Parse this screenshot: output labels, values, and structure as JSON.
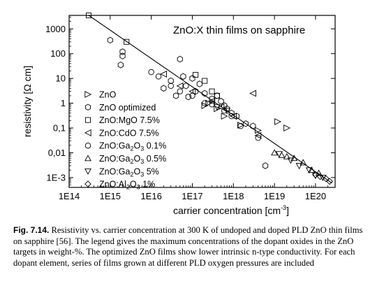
{
  "chart_data": {
    "type": "scatter",
    "title": "ZnO:X thin films on sapphire",
    "xlabel": "carrier concentration [cm",
    "xlabel_sup": "-3",
    "xlabel_end": "]",
    "ylabel": "resistivity [Ω cm]",
    "x_scale": "log",
    "y_scale": "log",
    "xlim": [
      100000000000000.0,
      3e+20
    ],
    "ylim": [
      0.0004,
      3500
    ],
    "grid": false,
    "legend_position": "left",
    "x_ticks": [
      {
        "value": 100000000000000.0,
        "label": "1E14"
      },
      {
        "value": 1000000000000000.0,
        "label": "1E15"
      },
      {
        "value": 1e+16,
        "label": "1E16"
      },
      {
        "value": 1e+17,
        "label": "1E17"
      },
      {
        "value": 1e+18,
        "label": "1E18"
      },
      {
        "value": 1e+19,
        "label": "1E19"
      },
      {
        "value": 1e+20,
        "label": "1E20"
      }
    ],
    "y_ticks": [
      {
        "value": 1000,
        "label": "1000"
      },
      {
        "value": 100,
        "label": "100"
      },
      {
        "value": 10,
        "label": "10"
      },
      {
        "value": 1,
        "label": "1"
      },
      {
        "value": 0.1,
        "label": "0,1"
      },
      {
        "value": 0.01,
        "label": "0,01"
      },
      {
        "value": 0.001,
        "label": "1E-3"
      }
    ],
    "fit_line": [
      [
        300000000000000.0,
        3500
      ],
      [
        2.5e+20,
        0.0006
      ]
    ],
    "series": [
      {
        "name": "ZnO",
        "marker": "triangle-right",
        "points": [
          [
            2e+17,
            0.8
          ],
          [
            2.5e+17,
            1.0
          ],
          [
            4e+17,
            0.6
          ],
          [
            6e+17,
            0.3
          ],
          [
            1.5e+18,
            0.13
          ],
          [
            4e+18,
            0.08
          ],
          [
            1.2e+19,
            0.18
          ],
          [
            2e+19,
            0.1
          ]
        ]
      },
      {
        "name": "ZnO optimized",
        "marker": "hexagon",
        "points": [
          [
            1000000000000000.0,
            350
          ],
          [
            2000000000000000.0,
            120
          ],
          [
            2000000000000000.0,
            80
          ],
          [
            1800000000000000.0,
            35
          ],
          [
            3e+16,
            8
          ],
          [
            2e+16,
            4
          ],
          [
            4e+16,
            2
          ],
          [
            5e+16,
            60
          ],
          [
            6e+16,
            12
          ],
          [
            7e+16,
            5
          ],
          [
            8e+16,
            1.8
          ],
          [
            1e+17,
            10
          ],
          [
            1.2e+17,
            3
          ],
          [
            1.5e+17,
            6
          ],
          [
            2e+17,
            2.5
          ],
          [
            3e+17,
            1.5
          ],
          [
            4e+17,
            2
          ],
          [
            5e+17,
            1.2
          ],
          [
            6e+17,
            0.8
          ],
          [
            7e+17,
            0.6
          ],
          [
            9e+17,
            0.4
          ],
          [
            1.2e+18,
            0.3
          ],
          [
            2e+18,
            0.15
          ],
          [
            3e+18,
            0.12
          ],
          [
            6e+18,
            0.003
          ]
        ]
      },
      {
        "name": "ZnO:MgO 7.5%",
        "marker": "square",
        "points": [
          [
            300000000000000.0,
            3500
          ],
          [
            2500000000000000.0,
            300
          ],
          [
            1.2e+17,
            14
          ],
          [
            2e+17,
            8
          ],
          [
            3e+17,
            3
          ],
          [
            4e+17,
            2
          ]
        ]
      },
      {
        "name": "ZnO:CdO 7.5%",
        "marker": "triangle-left",
        "points": [
          [
            2e+16,
            15
          ],
          [
            5e+16,
            5
          ],
          [
            1e+17,
            3
          ],
          [
            3e+17,
            1.2
          ],
          [
            5e+17,
            0.7
          ],
          [
            1e+18,
            0.3
          ],
          [
            3e+18,
            2.5
          ],
          [
            4e+18,
            0.05
          ]
        ]
      },
      {
        "name": "ZnO:Ga2O3 0.1%",
        "marker": "circle",
        "points": [
          [
            1e+16,
            18
          ],
          [
            1.5e+16,
            12
          ],
          [
            3e+16,
            5
          ],
          [
            5e+16,
            3
          ],
          [
            1e+17,
            2
          ],
          [
            2e+17,
            1
          ],
          [
            3e+17,
            0.9
          ],
          [
            6e+17,
            0.5
          ],
          [
            9e+17,
            0.3
          ],
          [
            1.5e+18,
            0.12
          ],
          [
            4e+18,
            0.04
          ]
        ]
      },
      {
        "name": "ZnO:Ga2O3 0.5%",
        "marker": "triangle-up",
        "points": [
          [
            1e+19,
            0.01
          ],
          [
            1.5e+19,
            0.008
          ],
          [
            2e+19,
            0.007
          ],
          [
            3e+19,
            0.006
          ],
          [
            5e+19,
            0.004
          ],
          [
            8e+19,
            0.002
          ],
          [
            1.2e+20,
            0.0015
          ]
        ]
      },
      {
        "name": "ZnO:Ga2O3 5%",
        "marker": "triangle-down",
        "points": [
          [
            4e+17,
            0.7
          ],
          [
            7e+17,
            0.5
          ],
          [
            1.3e+19,
            0.009
          ],
          [
            2.5e+19,
            0.005
          ],
          [
            4e+19,
            0.003
          ],
          [
            7e+19,
            0.002
          ],
          [
            1e+20,
            0.0012
          ],
          [
            1.5e+20,
            0.001
          ]
        ]
      },
      {
        "name": "ZnO:Al2O3 1%",
        "marker": "diamond",
        "points": [
          [
            1e+20,
            0.0013
          ],
          [
            1.3e+20,
            0.0011
          ],
          [
            1.8e+20,
            0.0009
          ],
          [
            2.2e+20,
            0.0007
          ]
        ]
      }
    ],
    "legend_labels": [
      {
        "pre": "ZnO",
        "sub": "",
        "post": ""
      },
      {
        "pre": "ZnO optimized",
        "sub": "",
        "post": ""
      },
      {
        "pre": "ZnO:MgO 7.5%",
        "sub": "",
        "post": ""
      },
      {
        "pre": "ZnO:CdO 7.5%",
        "sub": "",
        "post": ""
      },
      {
        "pre": "ZnO:Ga",
        "sub": "2",
        "post": "O",
        "sub2": "3",
        "post2": " 0.1%"
      },
      {
        "pre": "ZnO:Ga",
        "sub": "2",
        "post": "O",
        "sub2": "3",
        "post2": " 0.5%"
      },
      {
        "pre": "ZnO:Ga",
        "sub": "2",
        "post": "O",
        "sub2": "3",
        "post2": " 5%"
      },
      {
        "pre": "ZnO:Al",
        "sub": "2",
        "post": "O",
        "sub2": "3",
        "post2": " 1%"
      }
    ]
  },
  "caption": {
    "label": "Fig. 7.14.",
    "text": " Resistivity vs. carrier concentration at 300 K of undoped and doped PLD ZnO thin films on sapphire [56]. The legend gives the maximum concentrations of the dopant oxides in the ZnO targets in weight-%. The optimized ZnO films show lower intrinsic n-type conductivity. For each dopant element, series of films grown at different PLD oxygen pressures are included"
  }
}
